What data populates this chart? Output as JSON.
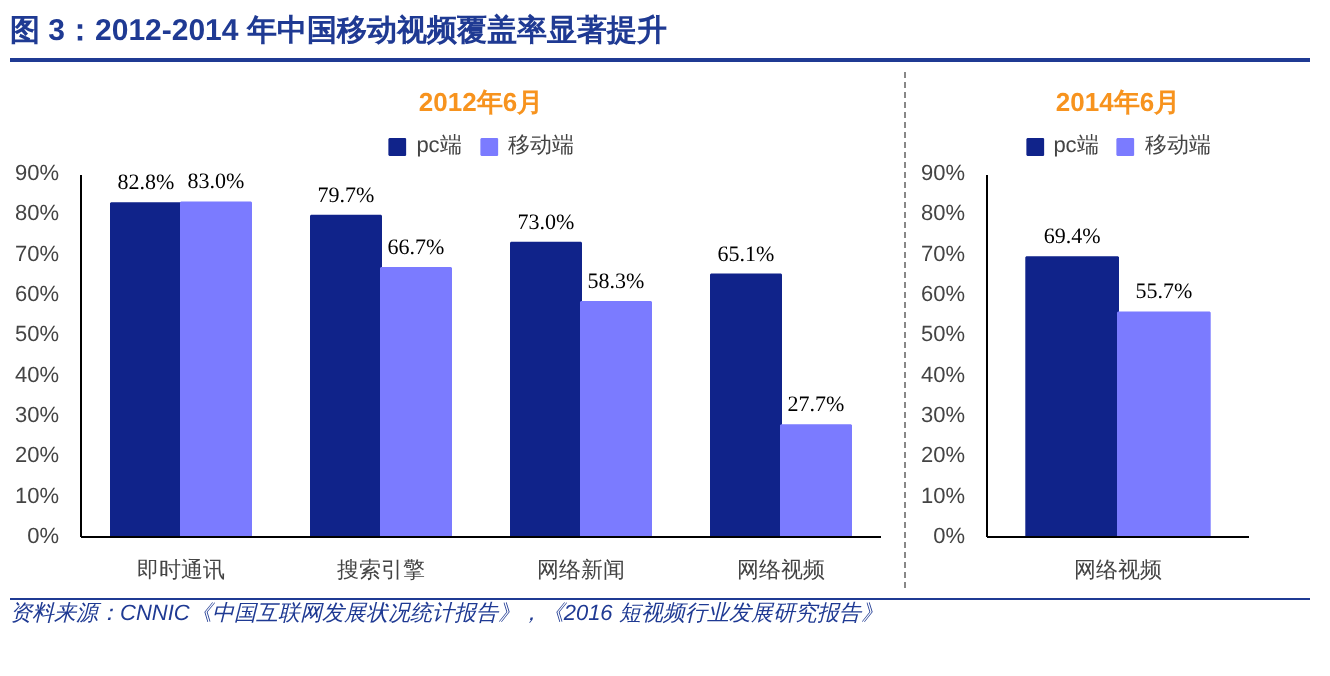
{
  "chart_data": [
    {
      "type": "bar",
      "title": "2012年6月",
      "annotations": [
        "图 3：2012-2014 年中国移动视频覆盖率显著提升",
        "资料来源：CNNIC《中国互联网发展状况统计报告》，《2016 短视频行业发展研究报告》"
      ],
      "categories": [
        "即时通讯",
        "搜索引擎",
        "网络新闻",
        "网络视频"
      ],
      "series": [
        {
          "name": "pc端",
          "color": "#10238a",
          "values": [
            82.8,
            79.7,
            73.0,
            65.1
          ]
        },
        {
          "name": "移动端",
          "color": "#7b7bff",
          "values": [
            83.0,
            66.7,
            58.3,
            27.7
          ]
        }
      ],
      "value_labels": [
        [
          "82.8%",
          "79.7%",
          "73.0%",
          "65.1%"
        ],
        [
          "83.0%",
          "66.7%",
          "58.3%",
          "27.7%"
        ]
      ],
      "ylim": [
        0,
        90
      ],
      "yticks": [
        {
          "value": 0,
          "label": "0%"
        },
        {
          "value": 10,
          "label": "10%"
        },
        {
          "value": 20,
          "label": "20%"
        },
        {
          "value": 30,
          "label": "30%"
        },
        {
          "value": 40,
          "label": "40%"
        },
        {
          "value": 50,
          "label": "50%"
        },
        {
          "value": 60,
          "label": "60%"
        },
        {
          "value": 70,
          "label": "70%"
        },
        {
          "value": 80,
          "label": "80%"
        },
        {
          "value": 90,
          "label": "90%"
        }
      ],
      "legend": "top",
      "grid": false
    },
    {
      "type": "bar",
      "title": "2014年6月",
      "categories": [
        "网络视频"
      ],
      "series": [
        {
          "name": "pc端",
          "color": "#10238a",
          "values": [
            69.4
          ]
        },
        {
          "name": "移动端",
          "color": "#7b7bff",
          "values": [
            55.7
          ]
        }
      ],
      "value_labels": [
        [
          "69.4%"
        ],
        [
          "55.7%"
        ]
      ],
      "ylim": [
        0,
        90
      ],
      "yticks": [
        {
          "value": 0,
          "label": "0%"
        },
        {
          "value": 10,
          "label": "10%"
        },
        {
          "value": 20,
          "label": "20%"
        },
        {
          "value": 30,
          "label": "30%"
        },
        {
          "value": 40,
          "label": "40%"
        },
        {
          "value": 50,
          "label": "50%"
        },
        {
          "value": 60,
          "label": "60%"
        },
        {
          "value": 70,
          "label": "70%"
        },
        {
          "value": 80,
          "label": "80%"
        },
        {
          "value": 90,
          "label": "90%"
        }
      ],
      "legend": "top",
      "grid": false
    }
  ]
}
